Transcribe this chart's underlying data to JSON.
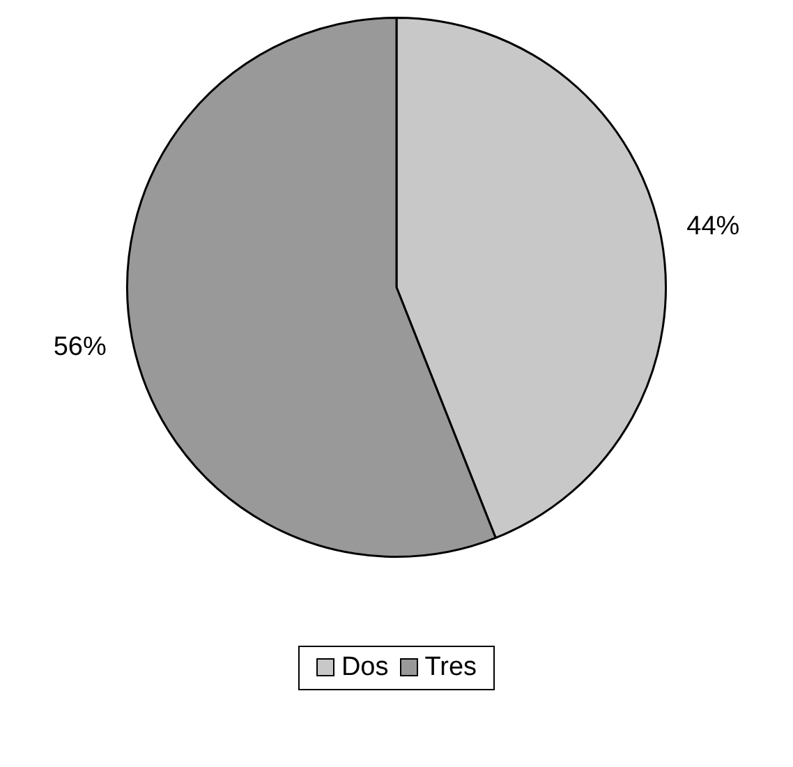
{
  "chart_data": {
    "type": "pie",
    "categories": [
      "Dos",
      "Tres"
    ],
    "values": [
      44,
      56
    ],
    "value_labels": [
      "44%",
      "56%"
    ],
    "colors": [
      "#c8c8c8",
      "#999999"
    ],
    "legend": "bottom"
  }
}
